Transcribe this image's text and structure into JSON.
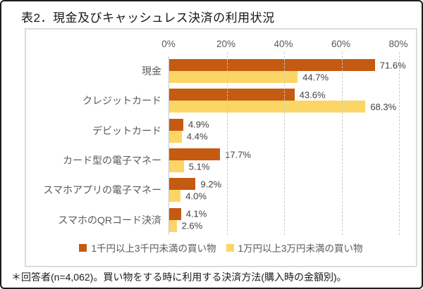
{
  "title": "表2．現金及びキャッシュレス決済の利用状況",
  "footnote": "＊回答者(n=4,062)。買い物をする時に利用する決済方法(購入時の金額別)。",
  "chart_data": {
    "type": "bar",
    "orientation": "horizontal",
    "title": "表2．現金及びキャッシュレス決済の利用状況",
    "categories": [
      "現金",
      "クレジットカード",
      "デビットカード",
      "カード型の電子マネー",
      "スマホアプリの電子マネー",
      "スマホのQRコード決済"
    ],
    "series": [
      {
        "name": "1千円以上3千円未満の買い物",
        "color": "#c55a11",
        "values": [
          71.6,
          43.6,
          4.9,
          17.7,
          9.2,
          4.1
        ],
        "labels": [
          "71.6%",
          "43.6%",
          "4.9%",
          "17.7%",
          "9.2%",
          "4.1%"
        ]
      },
      {
        "name": "1万円以上3万円未満の買い物",
        "color": "#fbd667",
        "values": [
          44.7,
          68.3,
          4.4,
          5.1,
          4.0,
          2.6
        ],
        "labels": [
          "44.7%",
          "68.3%",
          "4.4%",
          "5.1%",
          "4.0%",
          "2.6%"
        ]
      }
    ],
    "x_axis": {
      "min": 0,
      "max": 80,
      "ticks": [
        "0%",
        "20%",
        "40%",
        "60%",
        "80%"
      ],
      "tick_values": [
        0,
        20,
        40,
        60,
        80
      ]
    },
    "grid": "dashed-vertical",
    "legend_position": "bottom",
    "colors": {
      "grid": "#c9c9c9",
      "axis_text": "#595959",
      "value_text": "#3f3f3f"
    }
  }
}
